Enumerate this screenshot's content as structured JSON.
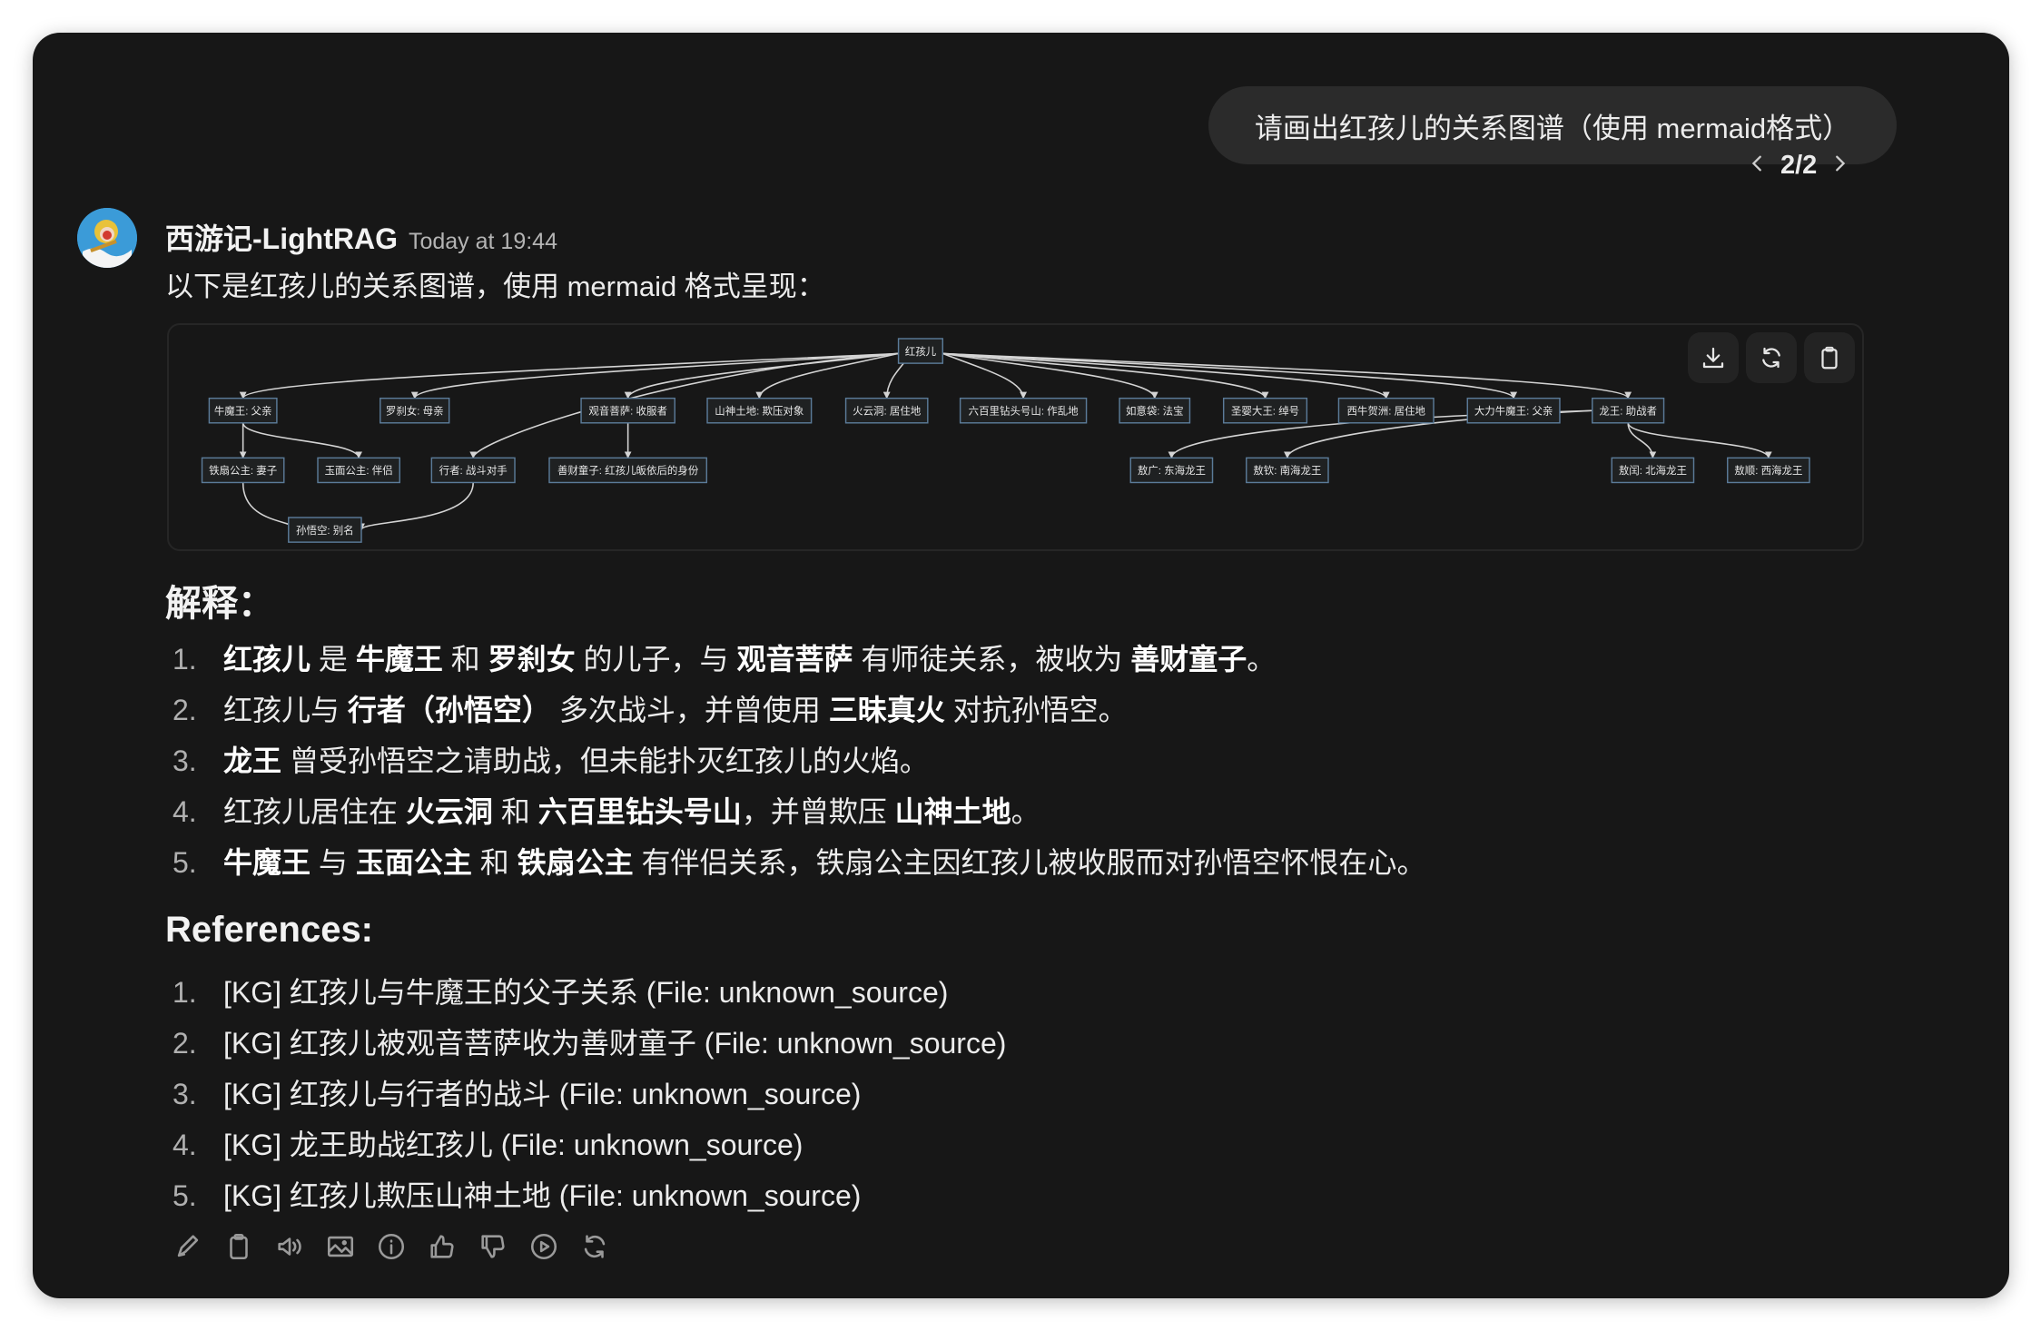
{
  "user_message": "请画出红孩儿的关系图谱（使用 mermaid格式）",
  "pager": {
    "label": "2/2"
  },
  "assistant": {
    "name": "西游记-LightRAG",
    "timestamp": "Today at 19:44",
    "intro": "以下是红孩儿的关系图谱，使用 mermaid 格式呈现："
  },
  "diagram": {
    "buttons": {
      "download": "download-icon",
      "refresh": "refresh-icon",
      "copy": "clipboard-icon"
    },
    "colors": {
      "node_fill": "#1f2122",
      "node_border": "#5b7b99",
      "edge": "#d4d4d4",
      "text": "#e6e6e6"
    },
    "nodes": [
      {
        "id": "root",
        "label": "红孩儿"
      },
      {
        "id": "nmw",
        "label": "牛魔王: 父亲"
      },
      {
        "id": "lcn",
        "label": "罗刹女: 母亲"
      },
      {
        "id": "gy",
        "label": "观音菩萨: 收服者"
      },
      {
        "id": "ss",
        "label": "山神土地: 欺压对象"
      },
      {
        "id": "hyd",
        "label": "火云洞: 居住地"
      },
      {
        "id": "lbl",
        "label": "六百里钻头号山: 作乱地"
      },
      {
        "id": "ryd",
        "label": "如意袋: 法宝"
      },
      {
        "id": "sy",
        "label": "圣婴大王: 绰号"
      },
      {
        "id": "xn",
        "label": "西牛贺洲: 居住地"
      },
      {
        "id": "dl",
        "label": "大力牛魔王: 父亲"
      },
      {
        "id": "lw",
        "label": "龙王: 助战者"
      },
      {
        "id": "tsg",
        "label": "铁扇公主: 妻子"
      },
      {
        "id": "ym",
        "label": "玉面公主: 伴侣"
      },
      {
        "id": "xz",
        "label": "行者: 战斗对手"
      },
      {
        "id": "sc",
        "label": "善财童子: 红孩儿皈依后的身份"
      },
      {
        "id": "ag",
        "label": "敖广: 东海龙王"
      },
      {
        "id": "aq",
        "label": "敖钦: 南海龙王"
      },
      {
        "id": "ar",
        "label": "敖闰: 北海龙王"
      },
      {
        "id": "as",
        "label": "敖顺: 西海龙王"
      },
      {
        "id": "swk",
        "label": "孙悟空: 别名"
      }
    ],
    "edges": [
      [
        "root",
        "nmw"
      ],
      [
        "root",
        "lcn"
      ],
      [
        "root",
        "xz"
      ],
      [
        "root",
        "gy"
      ],
      [
        "root",
        "ss"
      ],
      [
        "root",
        "hyd"
      ],
      [
        "root",
        "lbl"
      ],
      [
        "root",
        "ryd"
      ],
      [
        "root",
        "sy"
      ],
      [
        "root",
        "xn"
      ],
      [
        "root",
        "dl"
      ],
      [
        "root",
        "lw"
      ],
      [
        "nmw",
        "tsg"
      ],
      [
        "nmw",
        "ym"
      ],
      [
        "gy",
        "sc"
      ],
      [
        "tsg",
        "swk"
      ],
      [
        "xz",
        "swk"
      ],
      [
        "lw",
        "ag"
      ],
      [
        "lw",
        "aq"
      ],
      [
        "lw",
        "ar"
      ],
      [
        "lw",
        "as"
      ]
    ]
  },
  "explanation": {
    "heading": "解释：",
    "items": [
      [
        {
          "t": "红孩儿",
          "b": true
        },
        {
          "t": " 是 "
        },
        {
          "t": "牛魔王",
          "b": true
        },
        {
          "t": " 和 "
        },
        {
          "t": "罗刹女",
          "b": true
        },
        {
          "t": " 的儿子，与 "
        },
        {
          "t": "观音菩萨",
          "b": true
        },
        {
          "t": " 有师徒关系，被收为 "
        },
        {
          "t": "善财童子",
          "b": true
        },
        {
          "t": "。"
        }
      ],
      [
        {
          "t": "红孩儿与 "
        },
        {
          "t": "行者（孙悟空）",
          "b": true
        },
        {
          "t": " 多次战斗，并曾使用 "
        },
        {
          "t": "三昧真火",
          "b": true
        },
        {
          "t": " 对抗孙悟空。"
        }
      ],
      [
        {
          "t": "龙王",
          "b": true
        },
        {
          "t": " 曾受孙悟空之请助战，但未能扑灭红孩儿的火焰。"
        }
      ],
      [
        {
          "t": "红孩儿居住在 "
        },
        {
          "t": "火云洞",
          "b": true
        },
        {
          "t": " 和 "
        },
        {
          "t": "六百里钻头号山",
          "b": true
        },
        {
          "t": "，并曾欺压 "
        },
        {
          "t": "山神土地",
          "b": true
        },
        {
          "t": "。"
        }
      ],
      [
        {
          "t": "牛魔王",
          "b": true
        },
        {
          "t": " 与 "
        },
        {
          "t": "玉面公主",
          "b": true
        },
        {
          "t": " 和 "
        },
        {
          "t": "铁扇公主",
          "b": true
        },
        {
          "t": " 有伴侣关系，铁扇公主因红孩儿被收服而对孙悟空怀恨在心。"
        }
      ]
    ]
  },
  "references": {
    "heading": "References:",
    "items": [
      "[KG] 红孩儿与牛魔王的父子关系 (File: unknown_source)",
      "[KG] 红孩儿被观音菩萨收为善财童子 (File: unknown_source)",
      "[KG] 红孩儿与行者的战斗 (File: unknown_source)",
      "[KG] 龙王助战红孩儿 (File: unknown_source)",
      "[KG] 红孩儿欺压山神土地 (File: unknown_source)"
    ]
  },
  "actions": [
    "edit-icon",
    "copy-icon",
    "read-aloud-icon",
    "image-icon",
    "info-icon",
    "thumbs-up-icon",
    "thumbs-down-icon",
    "play-icon",
    "regenerate-icon"
  ]
}
